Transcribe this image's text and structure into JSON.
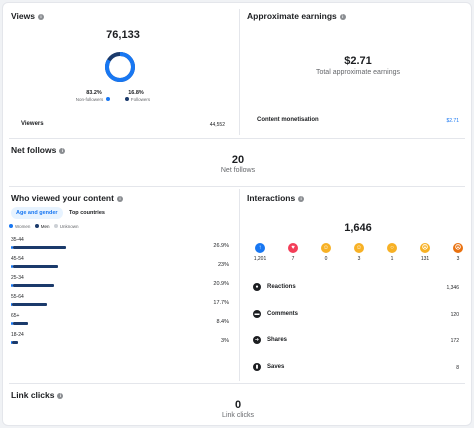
{
  "views": {
    "title": "Views",
    "total": "76,133",
    "non_followers_pct": "83.2%",
    "non_followers_label": "Non-followers",
    "followers_pct": "16.8%",
    "followers_label": "Followers",
    "non_followers_fraction": 0.832,
    "viewers_label": "Viewers",
    "viewers_value": "44,552"
  },
  "earnings": {
    "title": "Approximate earnings",
    "amount": "$2.71",
    "caption": "Total approximate earnings",
    "monetisation_label": "Content monetisation",
    "monetisation_value": "$2.71"
  },
  "net_follows": {
    "title": "Net follows",
    "value": "20",
    "caption": "Net follows"
  },
  "audience": {
    "title": "Who viewed your content",
    "tabs": [
      "Age and gender",
      "Top countries"
    ],
    "legend": [
      "Women",
      "Men",
      "Unknown"
    ],
    "rows": [
      {
        "label": "35-44",
        "pct": "26.9%",
        "women": 0.04,
        "men": 0.96
      },
      {
        "label": "45-54",
        "pct": "23%",
        "women": 0.04,
        "men": 0.96
      },
      {
        "label": "25-34",
        "pct": "20.9%",
        "women": 0.04,
        "men": 0.96
      },
      {
        "label": "55-64",
        "pct": "17.7%",
        "women": 0.04,
        "men": 0.96
      },
      {
        "label": "65+",
        "pct": "8.4%",
        "women": 0.1,
        "men": 0.9
      },
      {
        "label": "18-24",
        "pct": "3%",
        "women": 0.1,
        "men": 0.9
      }
    ]
  },
  "interactions": {
    "title": "Interactions",
    "total": "1,646",
    "reactions": [
      {
        "icon": "like-icon",
        "count": "1,201",
        "color": "#1877f2"
      },
      {
        "icon": "love-icon",
        "count": "7",
        "color": "#f33e58"
      },
      {
        "icon": "care-icon",
        "count": "0",
        "color": "#f7b125"
      },
      {
        "icon": "haha-icon",
        "count": "3",
        "color": "#f7b125"
      },
      {
        "icon": "wow-icon",
        "count": "1",
        "color": "#f7b125"
      },
      {
        "icon": "sad-icon",
        "count": "131",
        "color": "#f7b125"
      },
      {
        "icon": "angry-icon",
        "count": "3",
        "color": "#e9710f"
      }
    ],
    "rows": [
      {
        "icon": "reactions-icon",
        "label": "Reactions",
        "value": "1,346"
      },
      {
        "icon": "comments-icon",
        "label": "Comments",
        "value": "120"
      },
      {
        "icon": "shares-icon",
        "label": "Shares",
        "value": "172"
      },
      {
        "icon": "saves-icon",
        "label": "Saves",
        "value": "8"
      }
    ]
  },
  "link_clicks": {
    "title": "Link clicks",
    "value": "0",
    "caption": "Link clicks"
  },
  "colors": {
    "men": "#1b3a6b",
    "women": "#1877f2",
    "accent": "#1877f2",
    "donut_track": "#1b3a6b"
  }
}
